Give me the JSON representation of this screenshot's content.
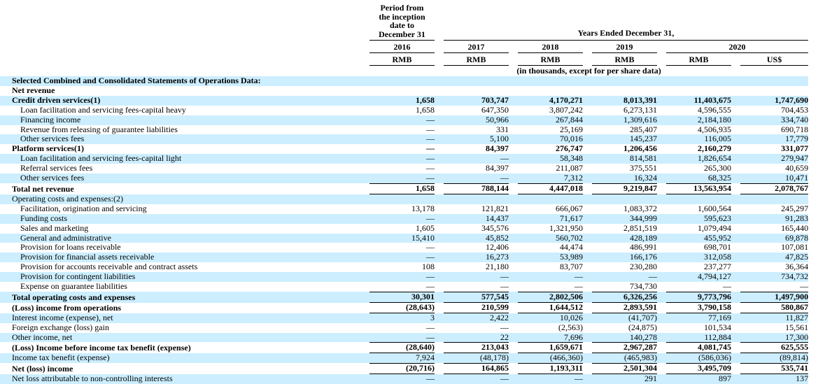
{
  "colors": {
    "row_highlight": "#CCEEFF",
    "rule": "#000000",
    "text": "#000000"
  },
  "table": {
    "period_header_lines": [
      "Period from",
      "the inception",
      "date to",
      "December 31"
    ],
    "years_header": "Years Ended December 31,",
    "year_labels": [
      "2016",
      "2017",
      "2018",
      "2019",
      "2020"
    ],
    "currency_labels": [
      "RMB",
      "RMB",
      "RMB",
      "RMB",
      "RMB",
      "US$"
    ],
    "units_note": "(in thousands, except for per share data)",
    "rows": [
      {
        "label": "Selected Combined and Consolidated Statements of Operations Data:",
        "bold": true,
        "indent": 0,
        "values": [
          "",
          "",
          "",
          "",
          "",
          ""
        ]
      },
      {
        "label": "Net revenue",
        "bold": true,
        "indent": 0,
        "values": [
          "",
          "",
          "",
          "",
          "",
          ""
        ]
      },
      {
        "label": "Credit driven services(1)",
        "bold": true,
        "indent": 0,
        "values": [
          "1,658",
          "703,747",
          "4,170,271",
          "8,013,391",
          "11,403,675",
          "1,747,690"
        ]
      },
      {
        "label": "Loan facilitation and servicing fees-capital heavy",
        "bold": false,
        "indent": 1,
        "values": [
          "1,658",
          "647,350",
          "3,807,242",
          "6,273,131",
          "4,596,555",
          "704,453"
        ]
      },
      {
        "label": "Financing income",
        "bold": false,
        "indent": 1,
        "values": [
          "—",
          "50,966",
          "267,844",
          "1,309,616",
          "2,184,180",
          "334,740"
        ]
      },
      {
        "label": "Revenue from releasing of guarantee liabilities",
        "bold": false,
        "indent": 1,
        "values": [
          "—",
          "331",
          "25,169",
          "285,407",
          "4,506,935",
          "690,718"
        ]
      },
      {
        "label": "Other services fees",
        "bold": false,
        "indent": 1,
        "values": [
          "—",
          "5,100",
          "70,016",
          "145,237",
          "116,005",
          "17,779"
        ]
      },
      {
        "label": "Platform services(1)",
        "bold": true,
        "indent": 0,
        "values": [
          "—",
          "84,397",
          "276,747",
          "1,206,456",
          "2,160,279",
          "331,077"
        ]
      },
      {
        "label": "Loan facilitation and servicing fees-capital light",
        "bold": false,
        "indent": 1,
        "values": [
          "—",
          "—",
          "58,348",
          "814,581",
          "1,826,654",
          "279,947"
        ]
      },
      {
        "label": "Referral services fees",
        "bold": false,
        "indent": 1,
        "values": [
          "—",
          "84,397",
          "211,087",
          "375,551",
          "265,300",
          "40,659"
        ]
      },
      {
        "label": "Other services fees",
        "bold": false,
        "indent": 1,
        "values": [
          "—",
          "—",
          "7,312",
          "16,324",
          "68,325",
          "10,471"
        ]
      },
      {
        "label": "Total net revenue",
        "bold": true,
        "indent": 0,
        "rule_top": true,
        "rule_bottom": true,
        "values": [
          "1,658",
          "788,144",
          "4,447,018",
          "9,219,847",
          "13,563,954",
          "2,078,767"
        ]
      },
      {
        "label": "Operating costs and expenses:(2)",
        "bold": false,
        "indent": 0,
        "values": [
          "",
          "",
          "",
          "",
          "",
          ""
        ]
      },
      {
        "label": "Facilitation, origination and servicing",
        "bold": false,
        "indent": 1,
        "values": [
          "13,178",
          "121,821",
          "666,067",
          "1,083,372",
          "1,600,564",
          "245,297"
        ]
      },
      {
        "label": "Funding costs",
        "bold": false,
        "indent": 1,
        "values": [
          "—",
          "14,437",
          "71,617",
          "344,999",
          "595,623",
          "91,283"
        ]
      },
      {
        "label": "Sales and marketing",
        "bold": false,
        "indent": 1,
        "values": [
          "1,605",
          "345,576",
          "1,321,950",
          "2,851,519",
          "1,079,494",
          "165,440"
        ]
      },
      {
        "label": "General and administrative",
        "bold": false,
        "indent": 1,
        "values": [
          "15,410",
          "45,852",
          "560,702",
          "428,189",
          "455,952",
          "69,878"
        ]
      },
      {
        "label": "Provision for loans receivable",
        "bold": false,
        "indent": 1,
        "values": [
          "—",
          "12,406",
          "44,474",
          "486,991",
          "698,701",
          "107,081"
        ]
      },
      {
        "label": "Provision for financial assets receivable",
        "bold": false,
        "indent": 1,
        "values": [
          "—",
          "16,273",
          "53,989",
          "166,176",
          "312,058",
          "47,825"
        ]
      },
      {
        "label": "Provision for accounts receivable and contract assets",
        "bold": false,
        "indent": 1,
        "values": [
          "108",
          "21,180",
          "83,707",
          "230,280",
          "237,277",
          "36,364"
        ]
      },
      {
        "label": "Provision for contingent liabilities",
        "bold": false,
        "indent": 1,
        "values": [
          "—",
          "—",
          "—",
          "—",
          "4,794,127",
          "734,732"
        ]
      },
      {
        "label": "Expense on guarantee liabilities",
        "bold": false,
        "indent": 1,
        "values": [
          "—",
          "—",
          "—",
          "734,730",
          "—",
          "—"
        ]
      },
      {
        "label": "Total operating costs and expenses",
        "bold": true,
        "indent": 0,
        "rule_top": true,
        "rule_bottom": true,
        "values": [
          "30,301",
          "577,545",
          "2,802,506",
          "6,326,256",
          "9,773,796",
          "1,497,900"
        ]
      },
      {
        "label": "(Loss) income from operations",
        "bold": true,
        "indent": 0,
        "rule_bottom": true,
        "values": [
          "(28,643)",
          "210,599",
          "1,644,512",
          "2,893,591",
          "3,790,158",
          "580,867"
        ]
      },
      {
        "label": "Interest income (expense), net",
        "bold": false,
        "indent": 0,
        "values": [
          "3",
          "2,422",
          "10,026",
          "(41,707)",
          "77,169",
          "11,827"
        ]
      },
      {
        "label": "Foreign exchange (loss) gain",
        "bold": false,
        "indent": 0,
        "values": [
          "—",
          "—",
          "(2,563)",
          "(24,875)",
          "101,534",
          "15,561"
        ]
      },
      {
        "label": "Other income, net",
        "bold": false,
        "indent": 0,
        "values": [
          "—",
          "22",
          "7,696",
          "140,278",
          "112,884",
          "17,300"
        ]
      },
      {
        "label": "(Loss) Income before income tax benefit (expense)",
        "bold": true,
        "indent": 0,
        "rule_top": true,
        "rule_bottom": true,
        "values": [
          "(28,640)",
          "213,043",
          "1,659,671",
          "2,967,287",
          "4,081,745",
          "625,555"
        ]
      },
      {
        "label": "Income tax benefit (expense)",
        "bold": false,
        "indent": 0,
        "values": [
          "7,924",
          "(48,178)",
          "(466,360)",
          "(465,983)",
          "(586,036)",
          "(89,814)"
        ]
      },
      {
        "label": "Net (loss) income",
        "bold": true,
        "indent": 0,
        "rule_top": true,
        "rule_bottom": true,
        "values": [
          "(20,716)",
          "164,865",
          "1,193,311",
          "2,501,304",
          "3,495,709",
          "535,741"
        ]
      },
      {
        "label": "Net loss attributable to non-controlling interests",
        "bold": false,
        "indent": 0,
        "values": [
          "—",
          "—",
          "—",
          "291",
          "897",
          "137"
        ]
      }
    ]
  }
}
